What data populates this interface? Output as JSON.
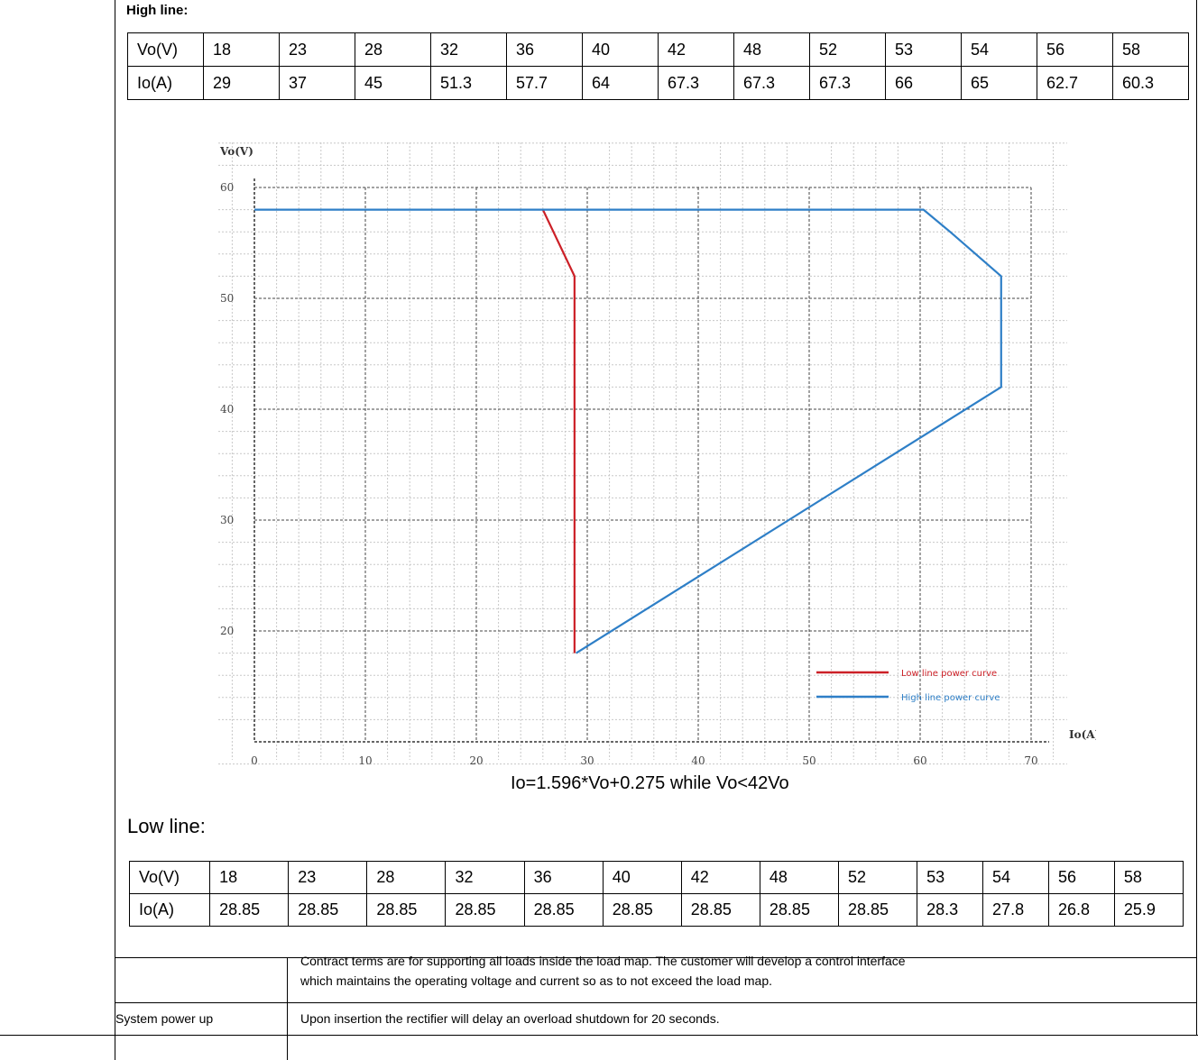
{
  "high_line": {
    "label": "High line:",
    "rows": [
      [
        "Vo(V)",
        "18",
        "23",
        "28",
        "32",
        "36",
        "40",
        "42",
        "48",
        "52",
        "53",
        "54",
        "56",
        "58"
      ],
      [
        "Io(A)",
        "29",
        "37",
        "45",
        "51.3",
        "57.7",
        "64",
        "67.3",
        "67.3",
        "67.3",
        "66",
        "65",
        "62.7",
        "60.3"
      ]
    ]
  },
  "chart_data": {
    "type": "line",
    "ylabel": "Vo(V)",
    "xlabel": "Io(A)",
    "xlim": [
      0,
      70
    ],
    "ylim": [
      10,
      60
    ],
    "x_ticks": [
      "0",
      "10",
      "20",
      "30",
      "40",
      "50",
      "60",
      "70"
    ],
    "y_ticks": [
      "20",
      "30",
      "40",
      "50",
      "60"
    ],
    "grid": true,
    "legend_position": "bottom-right",
    "series": [
      {
        "name": "Low line power curve",
        "color": "#cc2027",
        "points": [
          [
            26,
            58
          ],
          [
            28.85,
            52
          ],
          [
            28.85,
            18
          ]
        ]
      },
      {
        "name": "High line power curve",
        "color": "#2e7fc7",
        "points": [
          [
            0,
            58
          ],
          [
            60.3,
            58
          ],
          [
            62.7,
            56
          ],
          [
            65,
            54
          ],
          [
            67.3,
            52
          ],
          [
            67.3,
            42
          ],
          [
            29,
            18
          ]
        ]
      }
    ]
  },
  "formula": "Io=1.596*Vo+0.275 while Vo<42Vo",
  "low_line": {
    "label": "Low line:",
    "rows": [
      [
        "Vo(V)",
        "18",
        "23",
        "28",
        "32",
        "36",
        "40",
        "42",
        "48",
        "52",
        "53",
        "54",
        "56",
        "58"
      ],
      [
        "Io(A)",
        "28.85",
        "28.85",
        "28.85",
        "28.85",
        "28.85",
        "28.85",
        "28.85",
        "28.85",
        "28.85",
        "28.3",
        "27.8",
        "26.8",
        "25.9"
      ]
    ]
  },
  "notes": {
    "contract_line1": "Contract terms are for supporting all loads inside the load map.  The customer will develop a control interface",
    "contract_line2": "which maintains the operating voltage and current so as to not exceed the load map.",
    "system_power_up_label": "System power up",
    "system_power_up_text": "Upon insertion the rectifier will delay an overload shutdown for 20 seconds."
  }
}
